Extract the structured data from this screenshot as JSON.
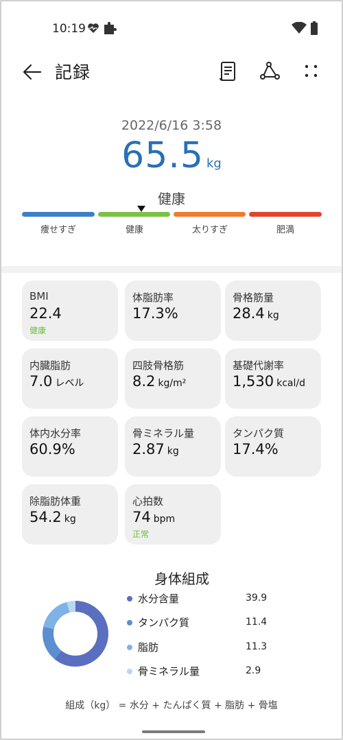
{
  "status_bar": {
    "time": "10:19"
  },
  "header": {
    "title": "記録"
  },
  "summary": {
    "datetime": "2022/6/16 3:58",
    "weight": "65.5",
    "weight_unit": "kg",
    "status": "健康"
  },
  "scale": {
    "segments": [
      {
        "label": "痩せすぎ",
        "color": "#3f7fc9"
      },
      {
        "label": "健康",
        "color": "#7cc144"
      },
      {
        "label": "太りすぎ",
        "color": "#f07a30"
      },
      {
        "label": "肥満",
        "color": "#e2452e"
      }
    ],
    "marker_segment": "健康"
  },
  "metrics": [
    {
      "label": "BMI",
      "value": "22.4",
      "unit": "",
      "sub": "健康"
    },
    {
      "label": "体脂肪率",
      "value": "17.3%",
      "unit": "",
      "sub": ""
    },
    {
      "label": "骨格筋量",
      "value": "28.4",
      "unit": "kg",
      "sub": ""
    },
    {
      "label": "内臓脂肪",
      "value": "7.0",
      "unit": "レベル",
      "sub": ""
    },
    {
      "label": "四肢骨格筋",
      "value": "8.2",
      "unit": "kg/m²",
      "sub": ""
    },
    {
      "label": "基礎代謝率",
      "value": "1,530",
      "unit": "kcal/d",
      "sub": ""
    },
    {
      "label": "体内水分率",
      "value": "60.9%",
      "unit": "",
      "sub": ""
    },
    {
      "label": "骨ミネラル量",
      "value": "2.87",
      "unit": "kg",
      "sub": ""
    },
    {
      "label": "タンパク質",
      "value": "17.4%",
      "unit": "",
      "sub": ""
    },
    {
      "label": "除脂肪体重",
      "value": "54.2",
      "unit": "kg",
      "sub": ""
    },
    {
      "label": "心拍数",
      "value": "74",
      "unit": "bpm",
      "sub": "正常"
    }
  ],
  "composition": {
    "title": "身体組成",
    "items": [
      {
        "name": "水分含量",
        "value": "39.9",
        "color": "#5a6fc0"
      },
      {
        "name": "タンパク質",
        "value": "11.4",
        "color": "#5b8fcf"
      },
      {
        "name": "脂肪",
        "value": "11.3",
        "color": "#7fb2e6"
      },
      {
        "name": "骨ミネラル量",
        "value": "2.9",
        "color": "#b9d6f2"
      }
    ],
    "formula": "組成（kg） = 水分 + たんぱく質 + 脂肪 + 骨塩"
  }
}
